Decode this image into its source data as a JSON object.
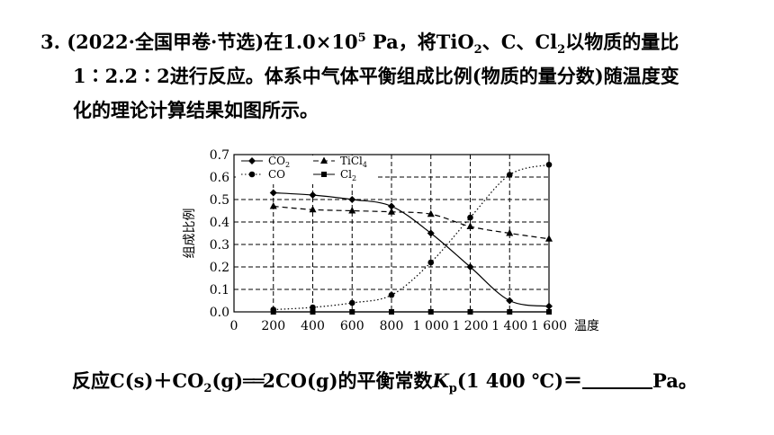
{
  "question": {
    "number": "3.",
    "source": "(2022·全国甲卷·节选)",
    "line1": {
      "a": "在1.0×10",
      "sup": "5",
      "b": " Pa，将TiO",
      "sub1": "2",
      "c": "、C、Cl",
      "sub2": "2",
      "d": "以物质的量比"
    },
    "line2": "1∶2.2∶2进行反应。体系中气体平衡组成比例(物质的量分数)随温度变",
    "line3": "化的理论计算结果如图所示。"
  },
  "bottom": {
    "a": "反应C(s)＋CO",
    "sub1": "2",
    "b": "(g)",
    "eq": "══",
    "c": "2CO(g)的平衡常数",
    "k": "K",
    "ksub": "p",
    "d": "(1 400 ℃)＝",
    "unit": "Pa。"
  },
  "chart_data": {
    "type": "line",
    "xlabel": "温度/℃",
    "ylabel": "组成比例",
    "xlim": [
      0,
      1600
    ],
    "ylim": [
      0,
      0.7
    ],
    "x_ticks": [
      "0",
      "200",
      "400",
      "600",
      "800",
      "1 000",
      "1 200",
      "1 400",
      "1 600"
    ],
    "y_ticks": [
      "0.0",
      "0.1",
      "0.2",
      "0.3",
      "0.4",
      "0.5",
      "0.6",
      "0.7"
    ],
    "grid": true,
    "legend": "top-left",
    "x": [
      200,
      400,
      600,
      800,
      1000,
      1200,
      1400,
      1600
    ],
    "series": [
      {
        "name": "CO₂",
        "sub": "2",
        "base": "CO",
        "style": "solid",
        "marker": "diamond",
        "values": [
          0.53,
          0.52,
          0.5,
          0.47,
          0.35,
          0.2,
          0.05,
          0.025
        ]
      },
      {
        "name": "CO",
        "sub": "",
        "base": "CO",
        "style": "dotted",
        "marker": "circle",
        "values": [
          0.01,
          0.02,
          0.04,
          0.075,
          0.22,
          0.42,
          0.61,
          0.655
        ]
      },
      {
        "name": "TiCl₄",
        "sub": "4",
        "base": "TiCl",
        "style": "dashed",
        "marker": "triangle",
        "values": [
          0.47,
          0.455,
          0.45,
          0.445,
          0.435,
          0.38,
          0.35,
          0.325
        ]
      },
      {
        "name": "Cl₂",
        "sub": "2",
        "base": "Cl",
        "style": "solid",
        "marker": "square",
        "values": [
          0.0,
          0.0,
          0.0,
          0.0,
          0.0,
          0.0,
          0.0,
          0.0
        ]
      }
    ]
  }
}
